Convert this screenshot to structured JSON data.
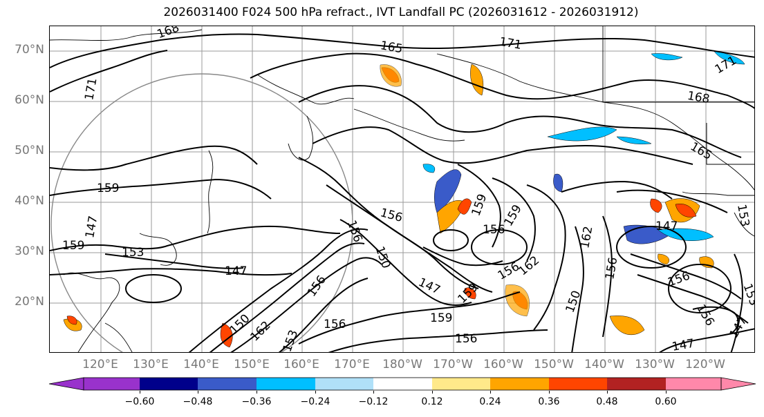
{
  "title": "2026031400 F024 500 hPa refract., IVT Landfall PC (2026031612 - 2026031912)",
  "map": {
    "projection": "PlateCarree",
    "lon_range": [
      "110°E",
      "115°W"
    ],
    "lat_range": [
      "10°N",
      "75°N"
    ],
    "lat_labels": [
      "70°N",
      "60°N",
      "50°N",
      "40°N",
      "30°N",
      "20°N"
    ],
    "lon_labels": [
      "120°E",
      "130°E",
      "140°E",
      "150°E",
      "160°E",
      "170°E",
      "180°W",
      "170°W",
      "160°W",
      "150°W",
      "140°W",
      "130°W",
      "120°W"
    ],
    "contour_labels": [
      {
        "id": "c1",
        "text": "168"
      },
      {
        "id": "c2",
        "text": "165"
      },
      {
        "id": "c3",
        "text": "171"
      },
      {
        "id": "c4",
        "text": "171"
      },
      {
        "id": "c5",
        "text": "171"
      },
      {
        "id": "c6",
        "text": "168"
      },
      {
        "id": "c7",
        "text": "165"
      },
      {
        "id": "c8",
        "text": "159"
      },
      {
        "id": "c9",
        "text": "159"
      },
      {
        "id": "c10",
        "text": "153"
      },
      {
        "id": "c11",
        "text": "147"
      },
      {
        "id": "c12",
        "text": "156"
      },
      {
        "id": "c13",
        "text": "156"
      },
      {
        "id": "c14",
        "text": "150"
      },
      {
        "id": "c15",
        "text": "147"
      },
      {
        "id": "c16",
        "text": "159"
      },
      {
        "id": "c17",
        "text": "159"
      },
      {
        "id": "c18",
        "text": "156"
      },
      {
        "id": "c19",
        "text": "159"
      },
      {
        "id": "c20",
        "text": "156"
      },
      {
        "id": "c21",
        "text": "162"
      },
      {
        "id": "c22",
        "text": "159"
      },
      {
        "id": "c23",
        "text": "156"
      },
      {
        "id": "c24",
        "text": "156"
      },
      {
        "id": "c25",
        "text": "150"
      },
      {
        "id": "c26",
        "text": "162"
      },
      {
        "id": "c27",
        "text": "153"
      },
      {
        "id": "c28",
        "text": "156"
      },
      {
        "id": "c29",
        "text": "150"
      },
      {
        "id": "c30",
        "text": "156"
      },
      {
        "id": "c31",
        "text": "162"
      },
      {
        "id": "c32",
        "text": "147"
      },
      {
        "id": "c33",
        "text": "153"
      },
      {
        "id": "c34",
        "text": "156"
      },
      {
        "id": "c35",
        "text": "156"
      },
      {
        "id": "c36",
        "text": "147"
      },
      {
        "id": "c37",
        "text": "147"
      },
      {
        "id": "c38",
        "text": "153"
      },
      {
        "id": "c39",
        "text": "147"
      }
    ]
  },
  "colorbar": {
    "ticks": [
      "−0.60",
      "−0.48",
      "−0.36",
      "−0.24",
      "−0.12",
      "0.12",
      "0.24",
      "0.36",
      "0.48",
      "0.60"
    ],
    "colors": {
      "under": "#9932cc",
      "bins": [
        "#9932cc",
        "#00008b",
        "#3a5bc9",
        "#00bfff",
        "#b0e0f8",
        "#ffffff",
        "#ffe98a",
        "#ffa500",
        "#ff4500",
        "#b22222",
        "#ff88aa"
      ],
      "over": "#ff88aa"
    }
  }
}
